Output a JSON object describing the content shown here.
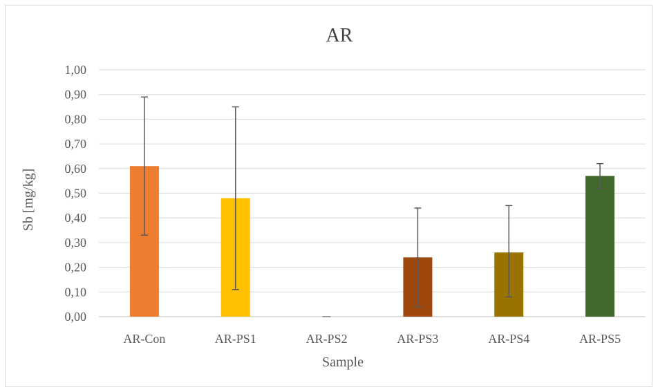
{
  "chart_data": {
    "type": "bar",
    "title": "AR",
    "xlabel": "Sample",
    "ylabel": "Sb [mg/kg]",
    "ylim": [
      0,
      1.0
    ],
    "yticks": [
      "0,00",
      "0,10",
      "0,20",
      "0,30",
      "0,40",
      "0,50",
      "0,60",
      "0,70",
      "0,80",
      "0,90",
      "1,00"
    ],
    "grid": true,
    "legend": "none",
    "categories": [
      "AR-Con",
      "AR-PS1",
      "AR-PS2",
      "AR-PS3",
      "AR-PS4",
      "AR-PS5"
    ],
    "values": [
      0.61,
      0.48,
      0.0,
      0.24,
      0.26,
      0.57
    ],
    "error_low": [
      0.33,
      0.11,
      0.0,
      0.04,
      0.08,
      0.52
    ],
    "error_high": [
      0.89,
      0.85,
      0.0,
      0.44,
      0.45,
      0.62
    ],
    "colors": [
      "#ED7D31",
      "#FFC000",
      "#7F7F7F",
      "#9E480E",
      "#997300",
      "#43682B"
    ]
  }
}
